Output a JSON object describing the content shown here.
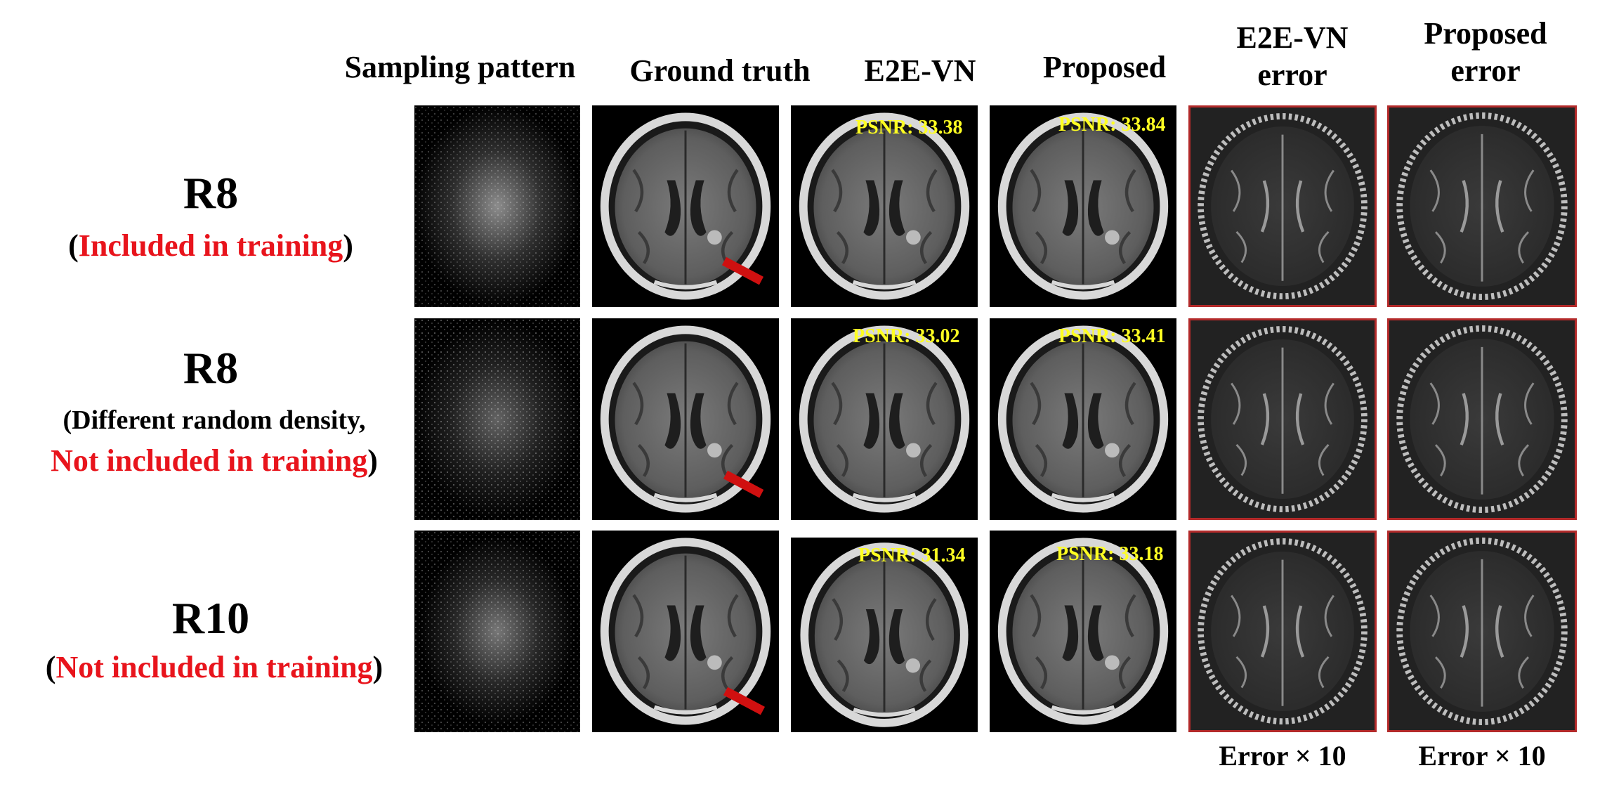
{
  "columns": {
    "sampling": "Sampling pattern",
    "ground_truth": "Ground truth",
    "e2evn": "E2E-VN",
    "proposed": "Proposed",
    "e2evn_error_1": "E2E-VN",
    "e2evn_error_2": "error",
    "proposed_error_1": "Proposed",
    "proposed_error_2": "error"
  },
  "rows": [
    {
      "main": "R8",
      "open": "(",
      "sub_red": "Included in training",
      "close": ")",
      "psnr_e2evn": "PSNR: 33.38",
      "psnr_proposed": "PSNR: 33.84"
    },
    {
      "main": "R8",
      "line1": "(Different random density,",
      "sub_red": "Not included in training",
      "close": ")",
      "psnr_e2evn": "PSNR: 33.02",
      "psnr_proposed": "PSNR: 33.41"
    },
    {
      "main": "R10",
      "open": "(",
      "sub_red": "Not included in training",
      "close": ")",
      "psnr_e2evn": "PSNR: 31.34",
      "psnr_proposed": "PSNR: 33.18"
    }
  ],
  "footer": {
    "e2evn_error": "Error × 10",
    "proposed_error": "Error × 10"
  },
  "colors": {
    "highlight_red": "#e8141c",
    "psnr_yellow": "#ffff22",
    "error_border": "#b32a2a",
    "arrow": "#d01010"
  }
}
